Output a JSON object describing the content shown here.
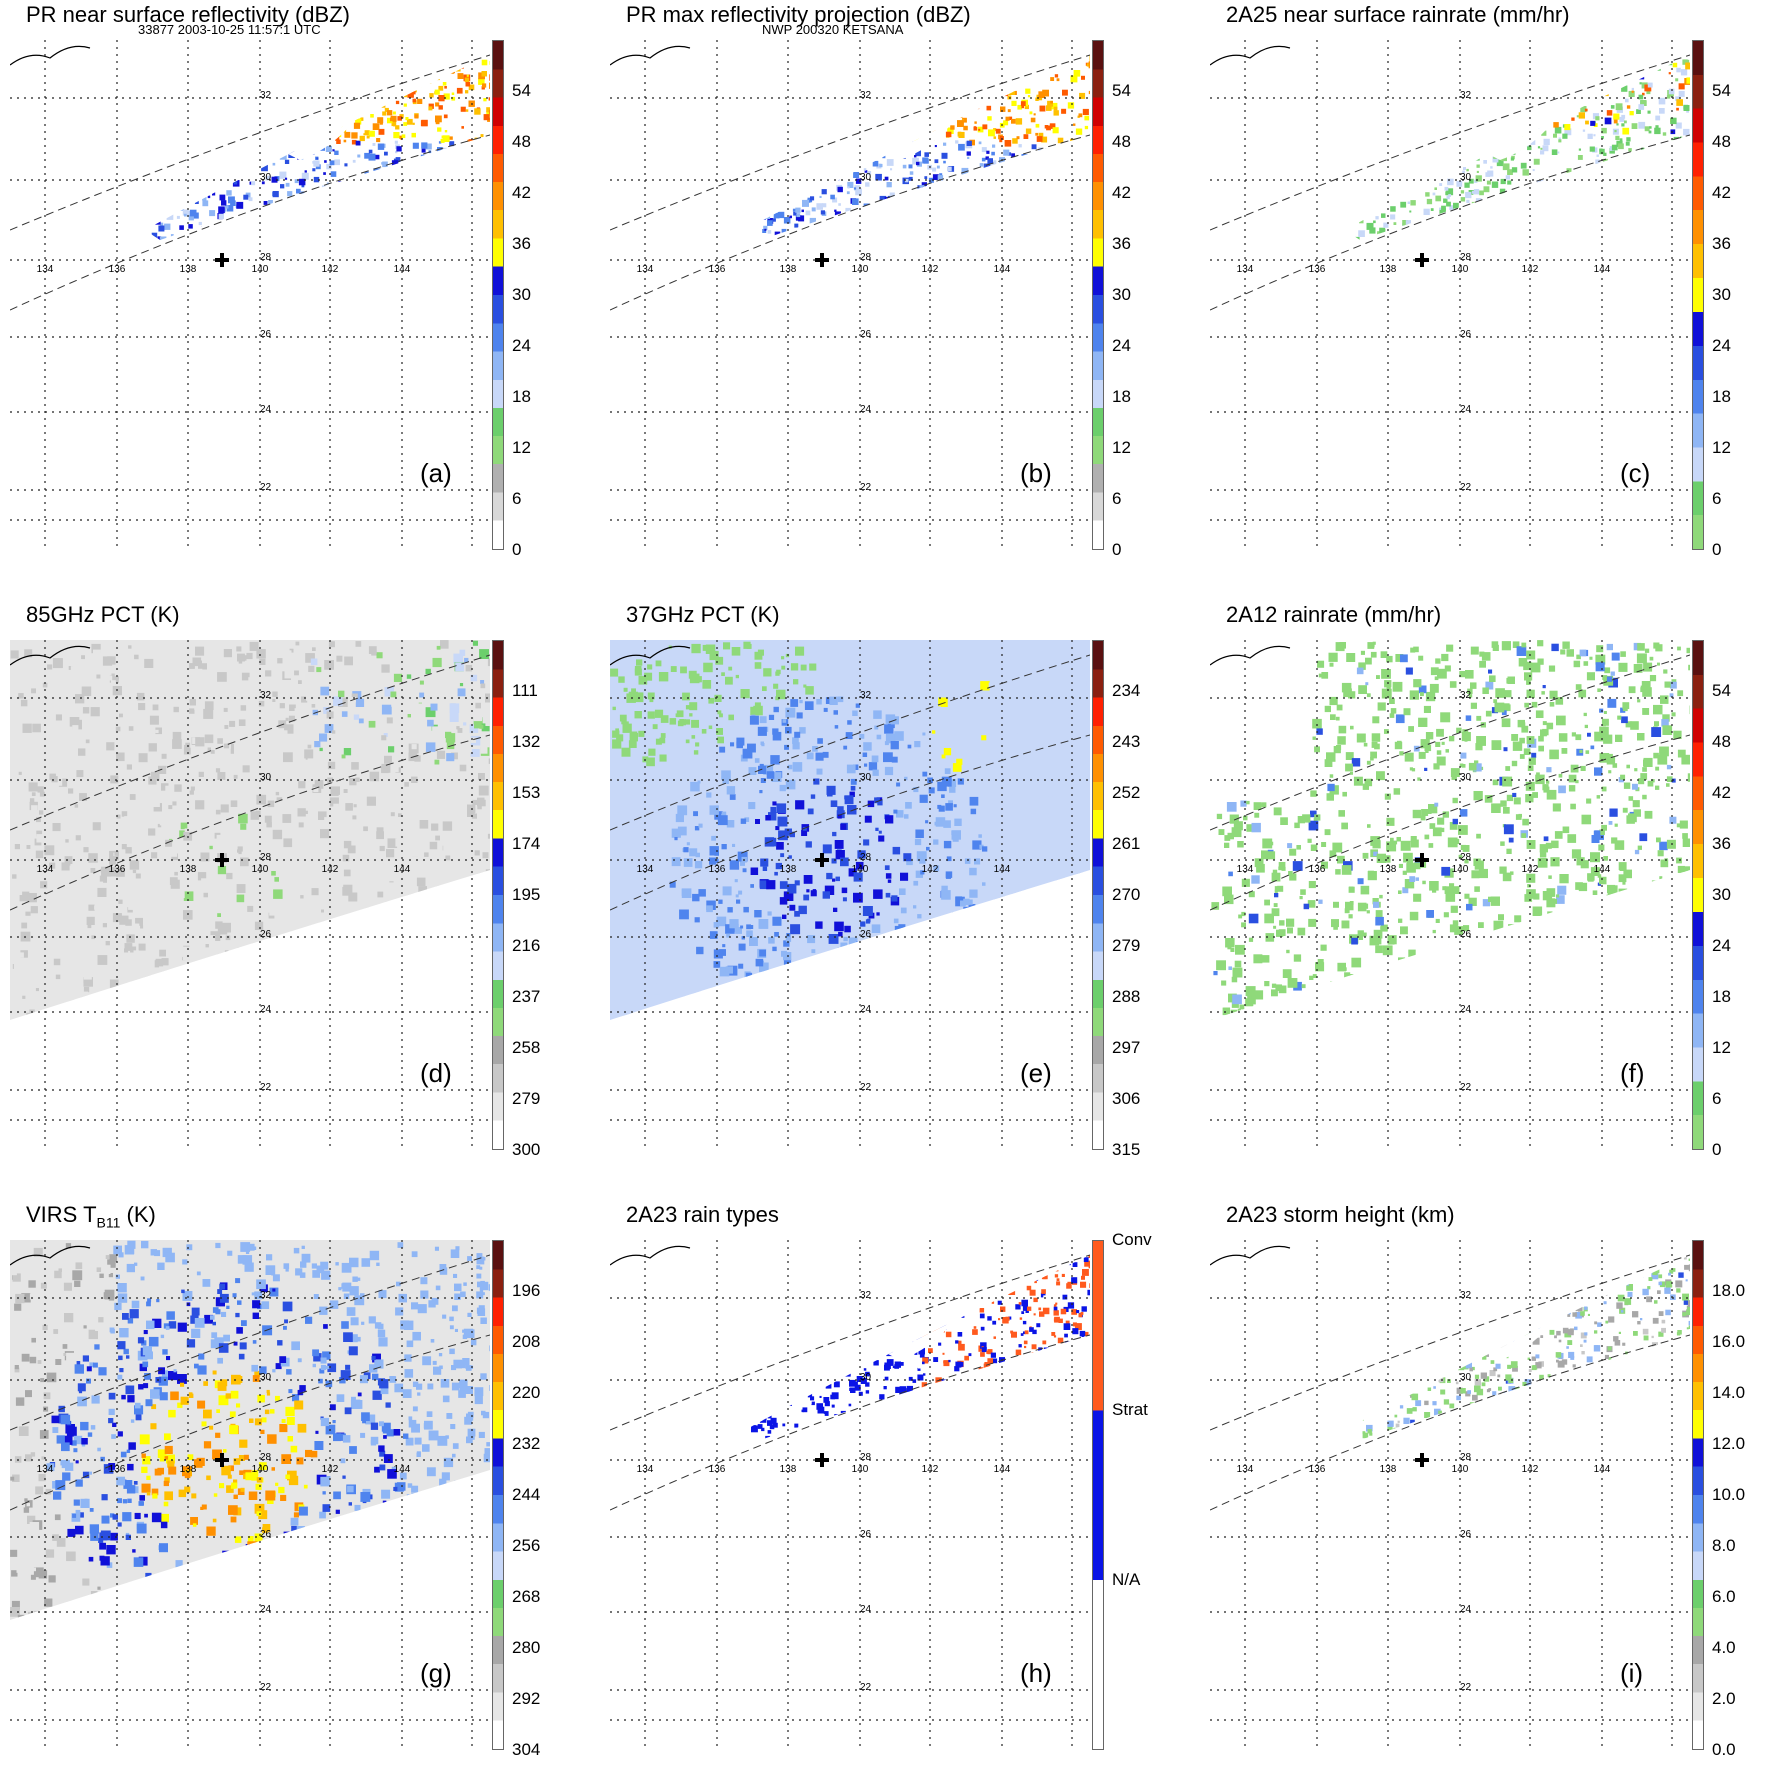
{
  "header": {
    "left": "33877 2003-10-25 11:57:1 UTC",
    "center": "NWP 200320 KETSANA"
  },
  "axes": {
    "lon_labels": [
      "134",
      "136",
      "138",
      "140",
      "142",
      "144"
    ],
    "lat_labels": [
      "32",
      "30",
      "28",
      "26",
      "24",
      "22"
    ]
  },
  "panels": [
    {
      "id": "a",
      "title": "PR near surface reflectivity (dBZ)",
      "label": "(a)",
      "colorbar": {
        "type": "reflectivity",
        "ticks": [
          "0",
          "6",
          "12",
          "18",
          "24",
          "30",
          "36",
          "42",
          "48",
          "54"
        ]
      },
      "swath": "pr",
      "field": "reflectivity"
    },
    {
      "id": "b",
      "title": "PR max reflectivity projection (dBZ)",
      "label": "(b)",
      "colorbar": {
        "type": "reflectivity",
        "ticks": [
          "0",
          "6",
          "12",
          "18",
          "24",
          "30",
          "36",
          "42",
          "48",
          "54"
        ]
      },
      "swath": "pr",
      "field": "maxrefl"
    },
    {
      "id": "c",
      "title": "2A25 near surface rainrate (mm/hr)",
      "label": "(c)",
      "colorbar": {
        "type": "rainrate",
        "ticks": [
          "0",
          "6",
          "12",
          "18",
          "24",
          "30",
          "36",
          "42",
          "48",
          "54"
        ]
      },
      "swath": "pr",
      "field": "rain"
    },
    {
      "id": "d",
      "title": "85GHz PCT (K)",
      "label": "(d)",
      "colorbar": {
        "type": "temperature",
        "ticks": [
          "300",
          "279",
          "258",
          "237",
          "216",
          "195",
          "174",
          "153",
          "132",
          "111"
        ]
      },
      "swath": "tmi",
      "field": "pct85"
    },
    {
      "id": "e",
      "title": "37GHz PCT (K)",
      "label": "(e)",
      "colorbar": {
        "type": "temperature",
        "ticks": [
          "315",
          "306",
          "297",
          "288",
          "279",
          "270",
          "261",
          "252",
          "243",
          "234"
        ]
      },
      "swath": "tmi",
      "field": "pct37"
    },
    {
      "id": "f",
      "title": "2A12 rainrate (mm/hr)",
      "label": "(f)",
      "colorbar": {
        "type": "rainrate",
        "ticks": [
          "0",
          "6",
          "12",
          "18",
          "24",
          "30",
          "36",
          "42",
          "48",
          "54"
        ]
      },
      "swath": "tmi",
      "field": "rain12"
    },
    {
      "id": "g",
      "title_main": "VIRS T",
      "title_sub": "B11",
      "title_unit": " (K)",
      "label": "(g)",
      "colorbar": {
        "type": "temperature",
        "ticks": [
          "304",
          "292",
          "280",
          "268",
          "256",
          "244",
          "232",
          "220",
          "208",
          "196"
        ]
      },
      "swath": "tmi",
      "field": "virs"
    },
    {
      "id": "h",
      "title": "2A23 rain types",
      "label": "(h)",
      "colorbar": {
        "type": "raintype",
        "ticks": [
          "N/A",
          "Strat",
          "Conv"
        ]
      },
      "swath": "pr",
      "field": "raintype"
    },
    {
      "id": "i",
      "title": "2A23 storm height (km)",
      "label": "(i)",
      "colorbar": {
        "type": "height",
        "ticks": [
          "0.0",
          "2.0",
          "4.0",
          "6.0",
          "8.0",
          "10.0",
          "12.0",
          "14.0",
          "16.0",
          "18.0"
        ]
      },
      "swath": "pr",
      "field": "height"
    }
  ],
  "colors": {
    "reflectivity": [
      "#ffffff",
      "#d8d8d8",
      "#b0b0b0",
      "#8fd97a",
      "#6ccf6c",
      "#c8d8f8",
      "#8fb6f5",
      "#4f84ee",
      "#2a4fe0",
      "#1010d8",
      "#ffff00",
      "#ffc000",
      "#ff9000",
      "#ff5a00",
      "#ff2000",
      "#d00000",
      "#8b2010",
      "#5a1010"
    ],
    "temperature": [
      "#ffffff",
      "#e6e6e6",
      "#c8c8c8",
      "#a8a8a8",
      "#8fd97a",
      "#6ccf6c",
      "#c8d8f8",
      "#8fb6f5",
      "#4f84ee",
      "#2a4fe0",
      "#1010d8",
      "#ffff00",
      "#ffc000",
      "#ff9000",
      "#ff5a00",
      "#ff2000",
      "#8b2010",
      "#5a1010"
    ],
    "rainrate": [
      "#8fd97a",
      "#6ccf6c",
      "#c8d8f8",
      "#8fb6f5",
      "#4f84ee",
      "#2a4fe0",
      "#1010d8",
      "#ffff00",
      "#ffc000",
      "#ff9000",
      "#ff5a00",
      "#ff2000",
      "#d00000",
      "#8b2010",
      "#5a1010"
    ],
    "height": [
      "#ffffff",
      "#e6e6e6",
      "#c8c8c8",
      "#a8a8a8",
      "#8fd97a",
      "#6ccf6c",
      "#c8d8f8",
      "#8fb6f5",
      "#4f84ee",
      "#2a4fe0",
      "#1010d8",
      "#ffff00",
      "#ffc000",
      "#ff9000",
      "#ff5a00",
      "#ff2000",
      "#8b2010",
      "#5a1010"
    ],
    "raintype": [
      "#ffffff",
      "#0a14e6",
      "#ff5a1e"
    ]
  },
  "storm_center_marker": "plus"
}
